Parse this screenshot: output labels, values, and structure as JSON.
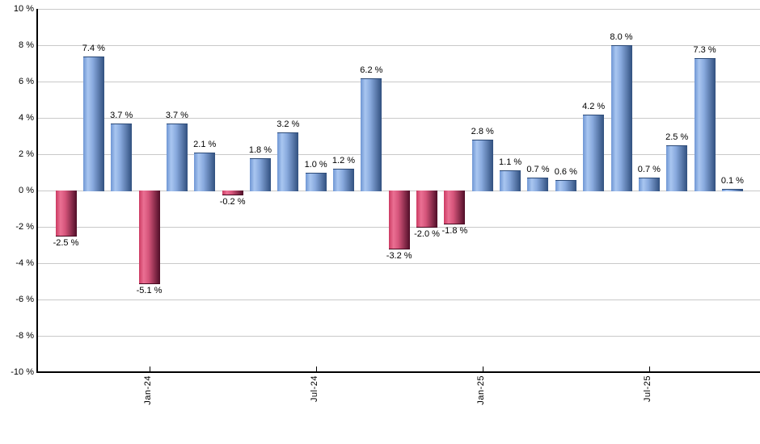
{
  "chart_data": {
    "type": "bar",
    "title": "",
    "xlabel": "",
    "ylabel": "",
    "values": [
      -2.5,
      7.4,
      3.7,
      -5.1,
      3.7,
      2.1,
      -0.2,
      1.8,
      3.2,
      1.0,
      1.2,
      6.2,
      -3.2,
      -2.0,
      -1.8,
      2.8,
      1.1,
      0.7,
      0.6,
      4.2,
      8.0,
      0.7,
      2.5,
      7.3,
      0.1
    ],
    "bar_labels": [
      "-2.5 %",
      "7.4 %",
      "3.7 %",
      "-5.1 %",
      "3.7 %",
      "2.1 %",
      "-0.2 %",
      "1.8 %",
      "3.2 %",
      "1.0 %",
      "1.2 %",
      "6.2 %",
      "-3.2 %",
      "-2.0 %",
      "-1.8 %",
      "2.8 %",
      "1.1 %",
      "0.7 %",
      "0.6 %",
      "4.2 %",
      "8.0 %",
      "0.7 %",
      "2.5 %",
      "7.3 %",
      "0.1 %"
    ],
    "y_axis": {
      "range": [
        -10,
        10
      ],
      "grid": true,
      "ticks": [
        {
          "value": 10,
          "label": "10 %"
        },
        {
          "value": 8,
          "label": "8 %"
        },
        {
          "value": 6,
          "label": "6 %"
        },
        {
          "value": 4,
          "label": "4 %"
        },
        {
          "value": 2,
          "label": "2 %"
        },
        {
          "value": 0,
          "label": "0 %"
        },
        {
          "value": -2,
          "label": "-2 %"
        },
        {
          "value": -4,
          "label": "-4 %"
        },
        {
          "value": -6,
          "label": "-6 %"
        },
        {
          "value": -8,
          "label": "-8 %"
        },
        {
          "value": -10,
          "label": "-10 %"
        }
      ]
    },
    "x_axis": {
      "ticks": [
        {
          "label": "Jan-24",
          "bar_index": 3
        },
        {
          "label": "Jul-24",
          "bar_index": 9
        },
        {
          "label": "Jan-25",
          "bar_index": 15
        },
        {
          "label": "Jul-25",
          "bar_index": 21
        }
      ]
    },
    "colors": {
      "positive_bar_edge": "#6f96d4",
      "positive_bar_light": "#a9c6f0",
      "positive_bar_dark": "#31507f",
      "negative_bar_edge": "#cc3a62",
      "negative_bar_light": "#ea7093",
      "negative_bar_dark": "#4f0d27",
      "gridline": "#c9c9c9",
      "axis": "#000000",
      "text": "#000000"
    },
    "legend": null
  }
}
